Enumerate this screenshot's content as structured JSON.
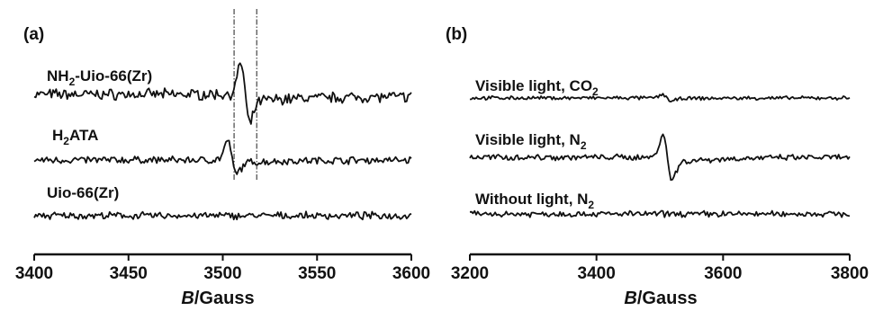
{
  "chart_data": [
    {
      "type": "line",
      "panel_label": "(a)",
      "xlabel_italic": "B",
      "xlabel_rest": "/Gauss",
      "xlim": [
        3400,
        3600
      ],
      "xticks": [
        "3400",
        "3450",
        "3500",
        "3550",
        "3600"
      ],
      "y_axis_shown": false,
      "marker_lines_x": [
        3506,
        3518
      ],
      "series": [
        {
          "name": "NH2-Uio-66(Zr)",
          "label_main": "NH",
          "label_sub": "2",
          "label_rest": "-Uio-66(Zr)",
          "baseline_before": 0.0,
          "baseline_after": -0.1,
          "signal_center": 3512,
          "peak": 1.3,
          "trough": -1.3,
          "noise": 0.18
        },
        {
          "name": "H2ATA",
          "label_main": "H",
          "label_sub": "2",
          "label_rest": "ATA",
          "baseline_before": 0.0,
          "baseline_after": 0.0,
          "signal_center": 3505,
          "peak": 0.8,
          "trough": -0.6,
          "noise": 0.12
        },
        {
          "name": "Uio-66(Zr)",
          "label_main": "Uio-66(Zr)",
          "label_sub": "",
          "label_rest": "",
          "baseline_before": 0.0,
          "baseline_after": 0.0,
          "signal_center": null,
          "peak": 0,
          "trough": 0,
          "noise": 0.12
        }
      ]
    },
    {
      "type": "line",
      "panel_label": "(b)",
      "xlabel_italic": "B",
      "xlabel_rest": "/Gauss",
      "xlim": [
        3200,
        3800
      ],
      "xticks": [
        "3200",
        "3400",
        "3600",
        "3800"
      ],
      "y_axis_shown": false,
      "series": [
        {
          "name": "Visible light, CO2",
          "label_main": "Visible light, CO",
          "label_sub": "2",
          "label_rest": "",
          "baseline_before": 0.0,
          "baseline_after": 0.0,
          "signal_center": 3512,
          "peak": 0.15,
          "trough": -0.15,
          "noise": 0.06
        },
        {
          "name": "Visible light, N2",
          "label_main": "Visible light, N",
          "label_sub": "2",
          "label_rest": "",
          "baseline_before": 0.0,
          "baseline_after": 0.0,
          "signal_center": 3512,
          "peak": 1.0,
          "trough": -1.0,
          "noise": 0.1
        },
        {
          "name": "Without light, N2",
          "label_main": "Without light, N",
          "label_sub": "2",
          "label_rest": "",
          "baseline_before": 0.0,
          "baseline_after": 0.0,
          "signal_center": null,
          "peak": 0,
          "trough": 0,
          "noise": 0.1
        }
      ]
    }
  ]
}
